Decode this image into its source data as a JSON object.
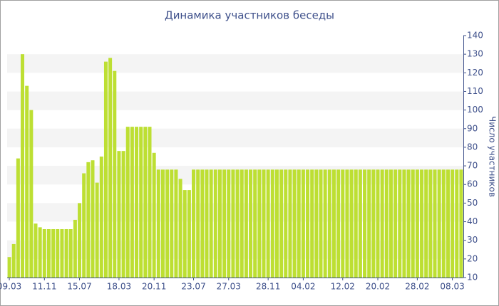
{
  "chart_data": {
    "type": "bar",
    "title": "Динамика участников беседы",
    "y_axis_label": "Число участников",
    "categories": [
      "09.03",
      null,
      null,
      null,
      null,
      null,
      null,
      null,
      "11.11",
      null,
      null,
      null,
      null,
      null,
      null,
      null,
      "15.07",
      null,
      null,
      null,
      null,
      null,
      null,
      null,
      null,
      "18.03",
      null,
      null,
      null,
      null,
      null,
      null,
      null,
      "20.11",
      null,
      null,
      null,
      null,
      null,
      null,
      null,
      null,
      "23.07",
      null,
      null,
      null,
      null,
      null,
      null,
      null,
      "27.03",
      null,
      null,
      null,
      null,
      null,
      null,
      null,
      null,
      "28.11",
      null,
      null,
      null,
      null,
      null,
      null,
      null,
      "04.02",
      null,
      null,
      null,
      null,
      null,
      null,
      null,
      null,
      "12.02",
      null,
      null,
      null,
      null,
      null,
      null,
      null,
      "20.02",
      null,
      null,
      null,
      null,
      null,
      null,
      null,
      null,
      "28.02",
      null,
      null,
      null,
      null,
      null,
      null,
      null,
      "08.03",
      null,
      null
    ],
    "values": [
      21,
      28,
      74,
      130,
      113,
      100,
      39,
      37,
      36,
      36,
      36,
      36,
      36,
      36,
      36,
      41,
      50,
      66,
      72,
      73,
      61,
      75,
      126,
      128,
      121,
      78,
      78,
      91,
      91,
      91,
      91,
      91,
      91,
      77,
      68,
      68,
      68,
      68,
      68,
      63,
      57,
      57,
      68,
      68,
      68,
      68,
      68,
      68,
      68,
      68,
      68,
      68,
      68,
      68,
      68,
      68,
      68,
      68,
      68,
      68,
      68,
      68,
      68,
      68,
      68,
      68,
      68,
      68,
      68,
      68,
      68,
      68,
      68,
      68,
      68,
      68,
      68,
      68,
      68,
      68,
      68,
      68,
      68,
      68,
      68,
      68,
      68,
      68,
      68,
      68,
      68,
      68,
      68,
      68,
      68,
      68,
      68,
      68,
      68,
      68,
      68,
      68,
      68,
      68
    ],
    "color": "#bddf33",
    "ylim": [
      10,
      140
    ],
    "yticks": [
      10,
      20,
      30,
      40,
      50,
      60,
      70,
      80,
      90,
      100,
      110,
      120,
      130,
      140
    ],
    "grid": true,
    "band_color": "#f4f4f4"
  }
}
